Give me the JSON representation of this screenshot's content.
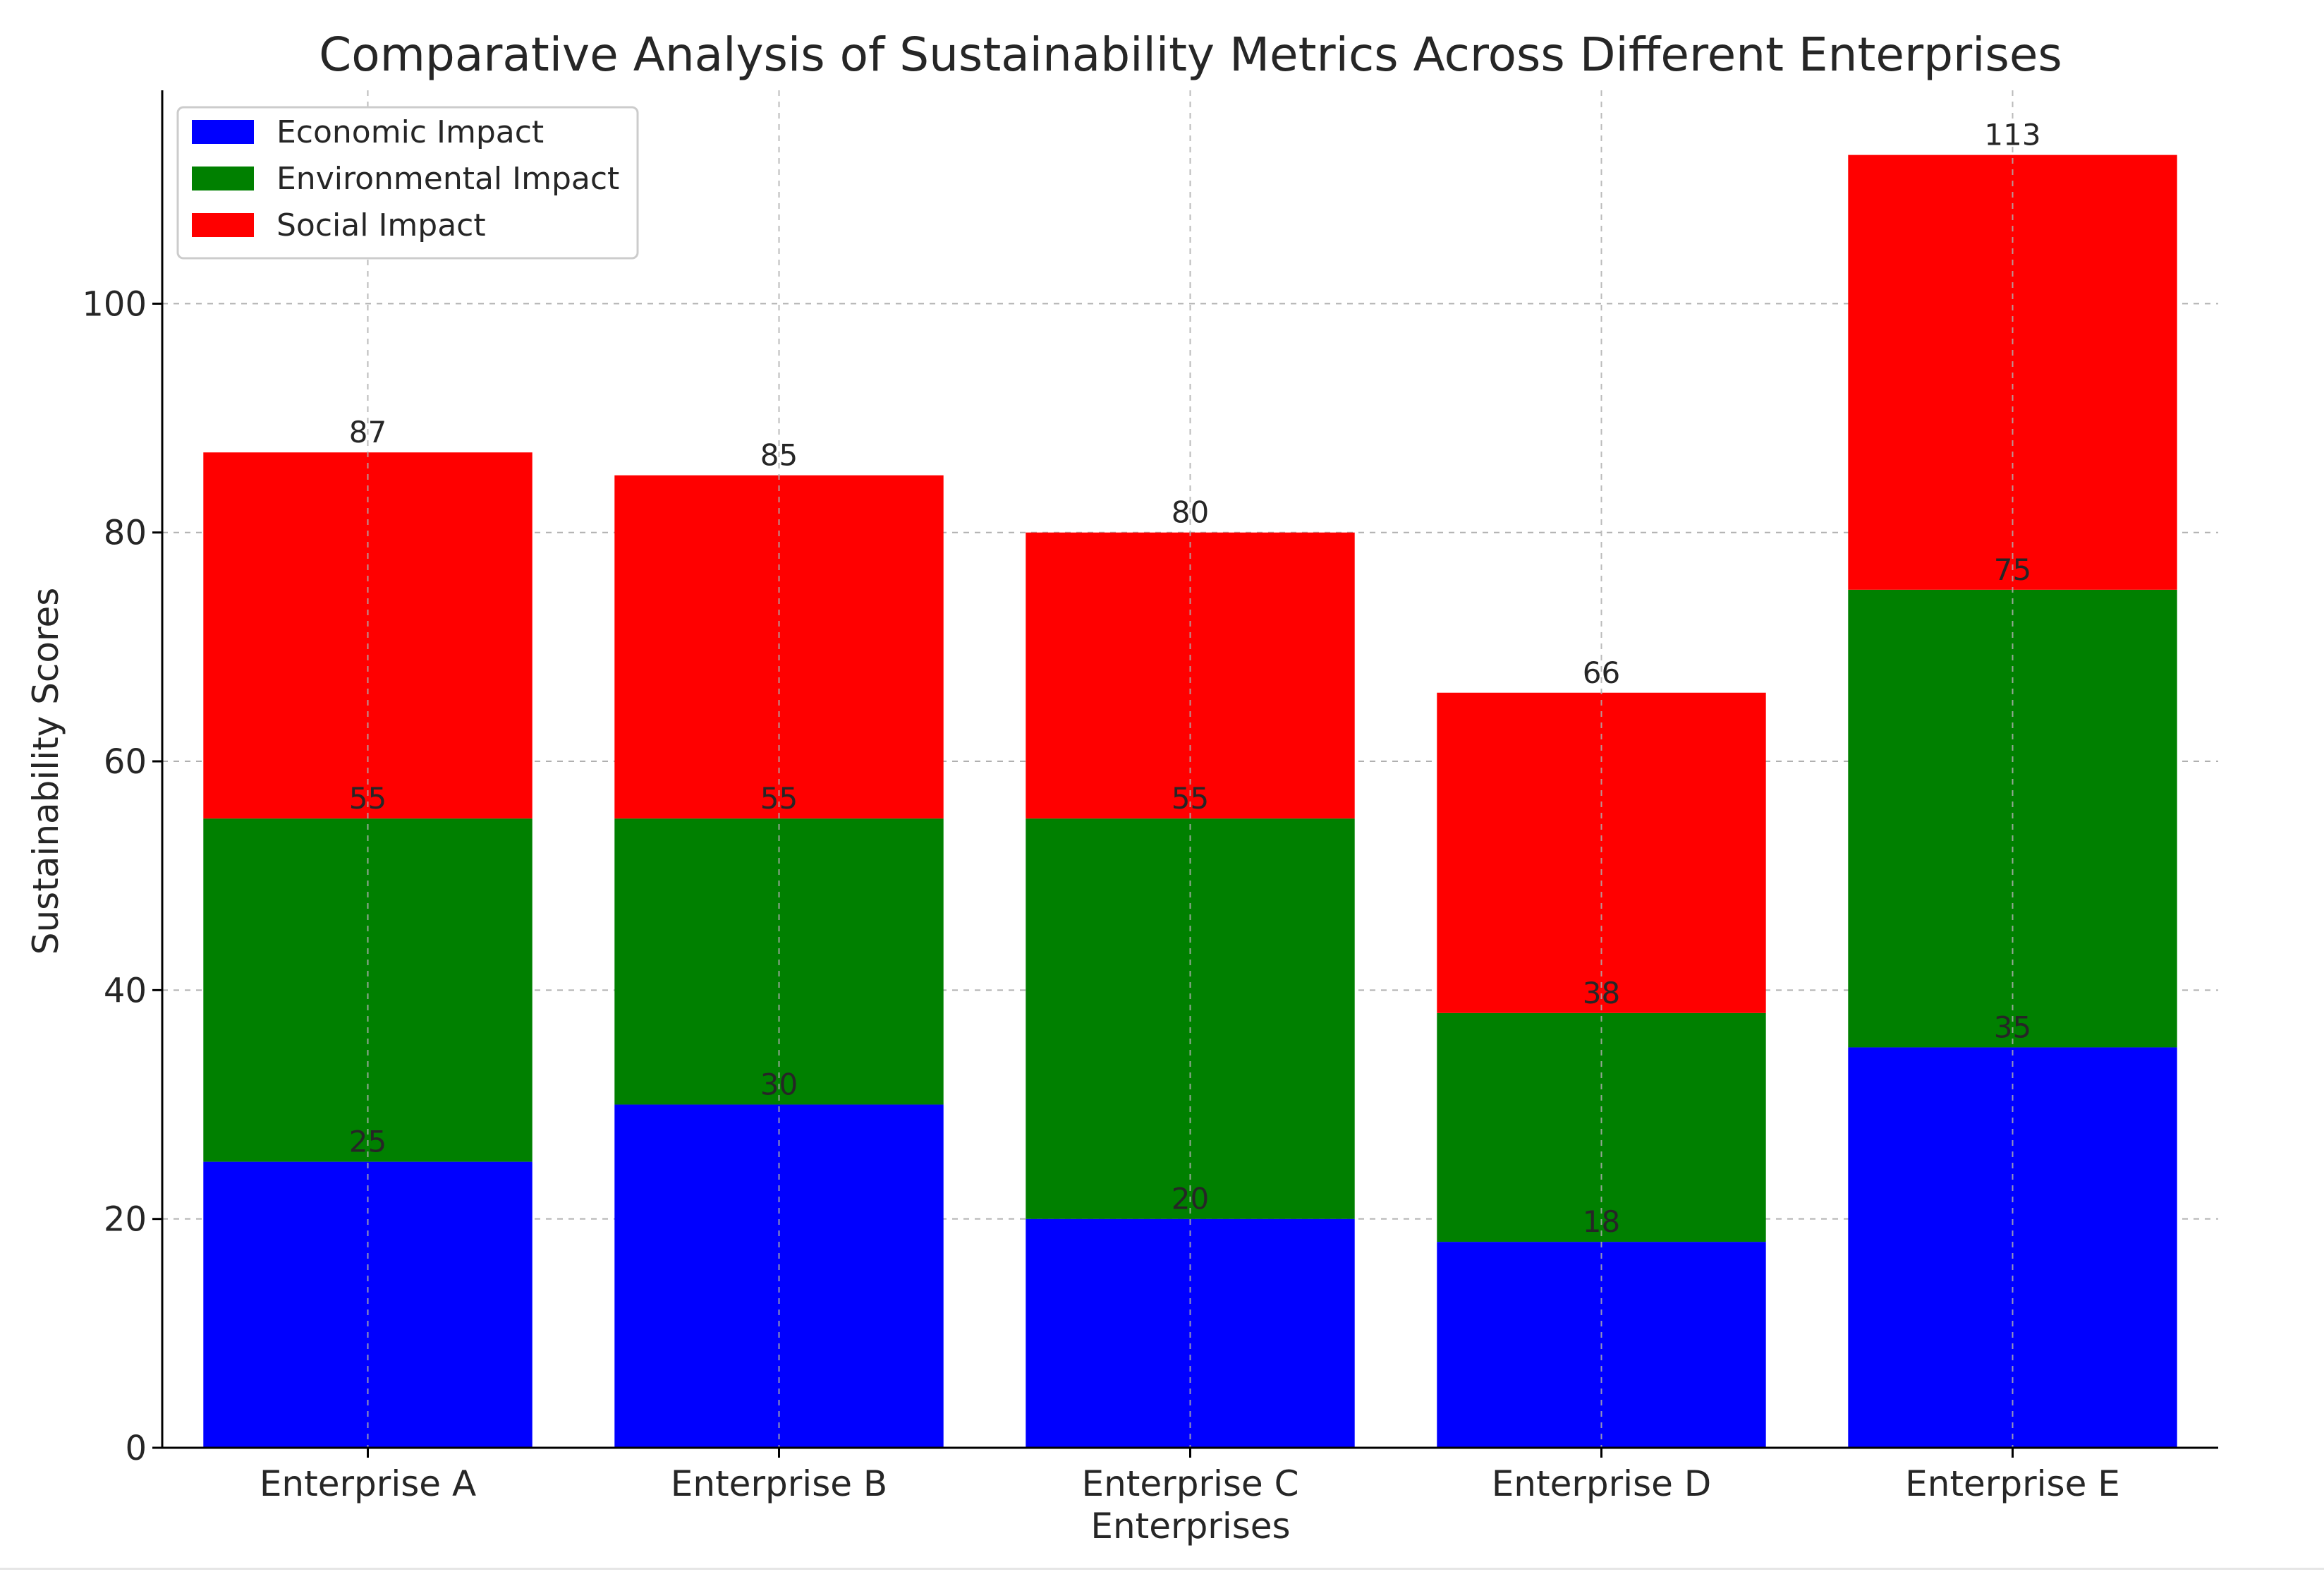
{
  "chart_data": {
    "type": "bar",
    "stacked": true,
    "title": "Comparative Analysis of Sustainability Metrics Across Different Enterprises",
    "xlabel": "Enterprises",
    "ylabel": "Sustainability Scores",
    "categories": [
      "Enterprise A",
      "Enterprise B",
      "Enterprise C",
      "Enterprise D",
      "Enterprise E"
    ],
    "series": [
      {
        "name": "Economic Impact",
        "color": "#0000ff",
        "values": [
          25,
          30,
          20,
          18,
          35
        ]
      },
      {
        "name": "Environmental Impact",
        "color": "#008000",
        "values": [
          30,
          25,
          35,
          20,
          40
        ]
      },
      {
        "name": "Social Impact",
        "color": "#ff0000",
        "values": [
          32,
          30,
          25,
          28,
          38
        ]
      }
    ],
    "cumulative_labels": [
      [
        "25",
        "30",
        "20",
        "18",
        "35"
      ],
      [
        "55",
        "55",
        "55",
        "38",
        "75"
      ],
      [
        "87",
        "85",
        "80",
        "66",
        "113"
      ]
    ],
    "ylim": [
      0,
      118.65
    ],
    "yticks": [
      0,
      20,
      40,
      60,
      80,
      100
    ],
    "grid": true,
    "legend_position": "top-left"
  }
}
